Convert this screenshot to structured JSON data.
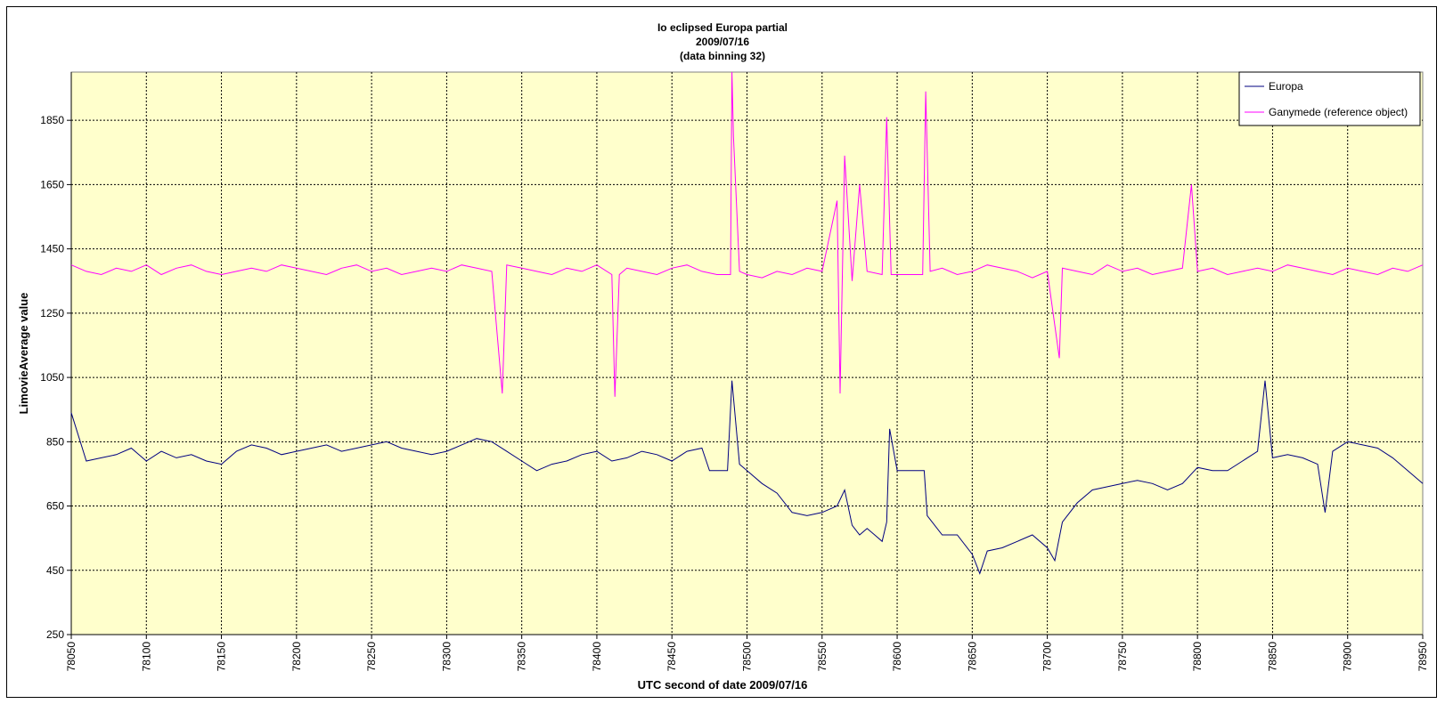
{
  "chart_data": {
    "type": "line",
    "title": [
      "Io eclipsed Europa partial",
      "2009/07/16",
      "(data binning 32)"
    ],
    "xlabel": "UTC second of date 2009/07/16",
    "ylabel": "LimovieAverage value",
    "xlim": [
      78050,
      78950
    ],
    "ylim": [
      250,
      2000
    ],
    "xticks": [
      78050,
      78100,
      78150,
      78200,
      78250,
      78300,
      78350,
      78400,
      78450,
      78500,
      78550,
      78600,
      78650,
      78700,
      78750,
      78800,
      78850,
      78900,
      78950
    ],
    "yticks": [
      250,
      450,
      650,
      850,
      1050,
      1250,
      1450,
      1650,
      1850
    ],
    "grid": true,
    "plot_background": "#ffffcc",
    "legend": {
      "position": "top-right"
    },
    "series": [
      {
        "name": "Europa",
        "color": "#000080",
        "x": [
          78050,
          78060,
          78070,
          78080,
          78090,
          78100,
          78110,
          78120,
          78130,
          78140,
          78150,
          78160,
          78170,
          78180,
          78190,
          78200,
          78210,
          78220,
          78230,
          78240,
          78250,
          78260,
          78270,
          78280,
          78290,
          78300,
          78310,
          78320,
          78330,
          78340,
          78350,
          78360,
          78370,
          78380,
          78390,
          78400,
          78410,
          78420,
          78430,
          78440,
          78450,
          78460,
          78470,
          78475,
          78480,
          78487,
          78490,
          78495,
          78500,
          78510,
          78520,
          78530,
          78540,
          78550,
          78560,
          78565,
          78570,
          78575,
          78580,
          78585,
          78590,
          78593,
          78595,
          78600,
          78610,
          78618,
          78620,
          78630,
          78640,
          78650,
          78655,
          78660,
          78670,
          78680,
          78690,
          78700,
          78705,
          78710,
          78720,
          78730,
          78740,
          78750,
          78760,
          78770,
          78780,
          78790,
          78800,
          78810,
          78820,
          78830,
          78840,
          78845,
          78850,
          78860,
          78870,
          78880,
          78885,
          78890,
          78900,
          78910,
          78920,
          78930,
          78940,
          78950
        ],
        "values": [
          940,
          790,
          800,
          810,
          830,
          790,
          820,
          800,
          810,
          790,
          780,
          820,
          840,
          830,
          810,
          820,
          830,
          840,
          820,
          830,
          840,
          850,
          830,
          820,
          810,
          820,
          840,
          860,
          850,
          820,
          790,
          760,
          780,
          790,
          810,
          820,
          790,
          800,
          820,
          810,
          790,
          820,
          830,
          760,
          760,
          760,
          1040,
          780,
          760,
          720,
          690,
          630,
          620,
          630,
          650,
          700,
          590,
          560,
          580,
          560,
          540,
          600,
          890,
          760,
          760,
          760,
          620,
          560,
          560,
          500,
          440,
          510,
          520,
          540,
          560,
          520,
          480,
          600,
          660,
          700,
          710,
          720,
          730,
          720,
          700,
          720,
          770,
          760,
          760,
          790,
          820,
          1040,
          800,
          810,
          800,
          780,
          630,
          820,
          850,
          840,
          830,
          800,
          760,
          720
        ]
      },
      {
        "name": "Ganymede (reference object)",
        "color": "#ff00ff",
        "x": [
          78050,
          78060,
          78070,
          78080,
          78090,
          78100,
          78110,
          78120,
          78130,
          78140,
          78150,
          78160,
          78170,
          78180,
          78190,
          78200,
          78210,
          78220,
          78230,
          78240,
          78250,
          78260,
          78270,
          78280,
          78290,
          78300,
          78310,
          78320,
          78330,
          78337,
          78340,
          78350,
          78360,
          78370,
          78380,
          78390,
          78400,
          78410,
          78412,
          78415,
          78420,
          78430,
          78440,
          78450,
          78460,
          78470,
          78480,
          78489,
          78490,
          78491,
          78495,
          78500,
          78510,
          78520,
          78530,
          78540,
          78550,
          78560,
          78562,
          78565,
          78570,
          78575,
          78580,
          78590,
          78593,
          78596,
          78600,
          78610,
          78617,
          78619,
          78622,
          78630,
          78640,
          78650,
          78660,
          78670,
          78680,
          78690,
          78700,
          78708,
          78710,
          78720,
          78730,
          78740,
          78750,
          78760,
          78770,
          78780,
          78790,
          78796,
          78800,
          78810,
          78820,
          78830,
          78840,
          78850,
          78860,
          78870,
          78880,
          78890,
          78900,
          78910,
          78920,
          78930,
          78940,
          78950
        ],
        "values": [
          1400,
          1380,
          1370,
          1390,
          1380,
          1400,
          1370,
          1390,
          1400,
          1380,
          1370,
          1380,
          1390,
          1380,
          1400,
          1390,
          1380,
          1370,
          1390,
          1400,
          1380,
          1390,
          1370,
          1380,
          1390,
          1380,
          1400,
          1390,
          1380,
          1000,
          1400,
          1390,
          1380,
          1370,
          1390,
          1380,
          1400,
          1370,
          990,
          1370,
          1390,
          1380,
          1370,
          1390,
          1400,
          1380,
          1370,
          1370,
          2000,
          1800,
          1380,
          1370,
          1360,
          1380,
          1370,
          1390,
          1380,
          1600,
          1000,
          1740,
          1350,
          1650,
          1380,
          1370,
          1860,
          1370,
          1370,
          1370,
          1370,
          1940,
          1380,
          1390,
          1370,
          1380,
          1400,
          1390,
          1380,
          1360,
          1380,
          1110,
          1390,
          1380,
          1370,
          1400,
          1380,
          1390,
          1370,
          1380,
          1390,
          1650,
          1380,
          1390,
          1370,
          1380,
          1390,
          1380,
          1400,
          1390,
          1380,
          1370,
          1390,
          1380,
          1370,
          1390,
          1380,
          1400
        ]
      }
    ]
  }
}
